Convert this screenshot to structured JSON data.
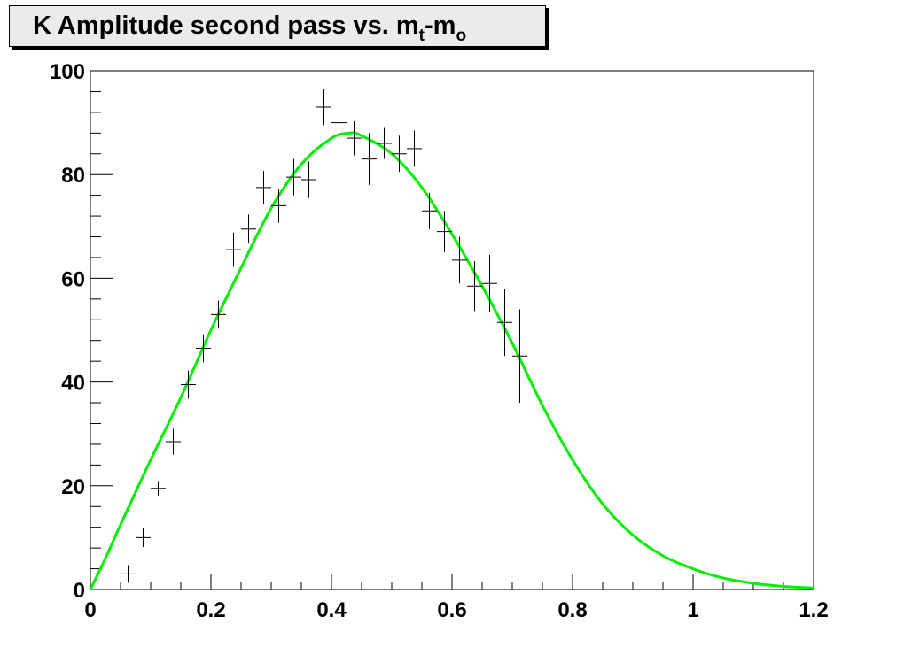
{
  "title": {
    "part1": "K Amplitude second pass vs. m",
    "sub1": "t",
    "part2": "-m",
    "sub2": "o"
  },
  "chart_data": {
    "type": "scatter",
    "title": "K Amplitude second pass vs. m_t-m_o",
    "xlabel": "",
    "ylabel": "",
    "xlim": [
      0,
      1.2
    ],
    "ylim": [
      0,
      100
    ],
    "xticks": [
      "0",
      "0.2",
      "0.4",
      "0.6",
      "0.8",
      "1",
      "1.2"
    ],
    "yticks": [
      "0",
      "20",
      "40",
      "60",
      "80",
      "100"
    ],
    "grid": false,
    "legend": "none",
    "series": [
      {
        "kind": "errorbar",
        "color": "#000000",
        "x": [
          0.0625,
          0.0875,
          0.1125,
          0.1375,
          0.1625,
          0.1875,
          0.2125,
          0.2375,
          0.2625,
          0.2875,
          0.3125,
          0.3375,
          0.3625,
          0.3875,
          0.4125,
          0.4375,
          0.4625,
          0.4875,
          0.5125,
          0.5375,
          0.5625,
          0.5875,
          0.6125,
          0.6375,
          0.6625,
          0.6875,
          0.7125
        ],
        "y": [
          3,
          10,
          19.5,
          28.5,
          39.5,
          46.5,
          53,
          65.5,
          69.5,
          77.5,
          74,
          79.5,
          79,
          93,
          90,
          87,
          83,
          86,
          84,
          85,
          73,
          69,
          63.5,
          58.5,
          59,
          51.5,
          45
        ],
        "xerr": 0.0125,
        "yerr": [
          1.7,
          1.8,
          1.4,
          2.5,
          2.7,
          2.7,
          2.7,
          3.3,
          2.8,
          3.2,
          3.3,
          3.5,
          3.5,
          3.5,
          3.3,
          3.3,
          5,
          3,
          3.5,
          3.5,
          3.5,
          4,
          4.5,
          4.8,
          5.5,
          6.5,
          9
        ]
      },
      {
        "kind": "fit-curve",
        "color": "#00ee00",
        "x": [
          0,
          0.025,
          0.05,
          0.1,
          0.15,
          0.2,
          0.25,
          0.3,
          0.35,
          0.4,
          0.43,
          0.45,
          0.5,
          0.55,
          0.6,
          0.65,
          0.7,
          0.75,
          0.8,
          0.85,
          0.9,
          0.95,
          1.0,
          1.05,
          1.1,
          1.15,
          1.2
        ],
        "y": [
          0,
          6,
          12.5,
          25,
          37,
          50,
          62,
          73.5,
          82,
          87,
          88,
          87.5,
          84,
          77.5,
          68.5,
          58.5,
          47.5,
          35.5,
          25,
          16.5,
          10.5,
          6.5,
          4,
          2.2,
          1.2,
          0.6,
          0.3
        ]
      }
    ]
  }
}
